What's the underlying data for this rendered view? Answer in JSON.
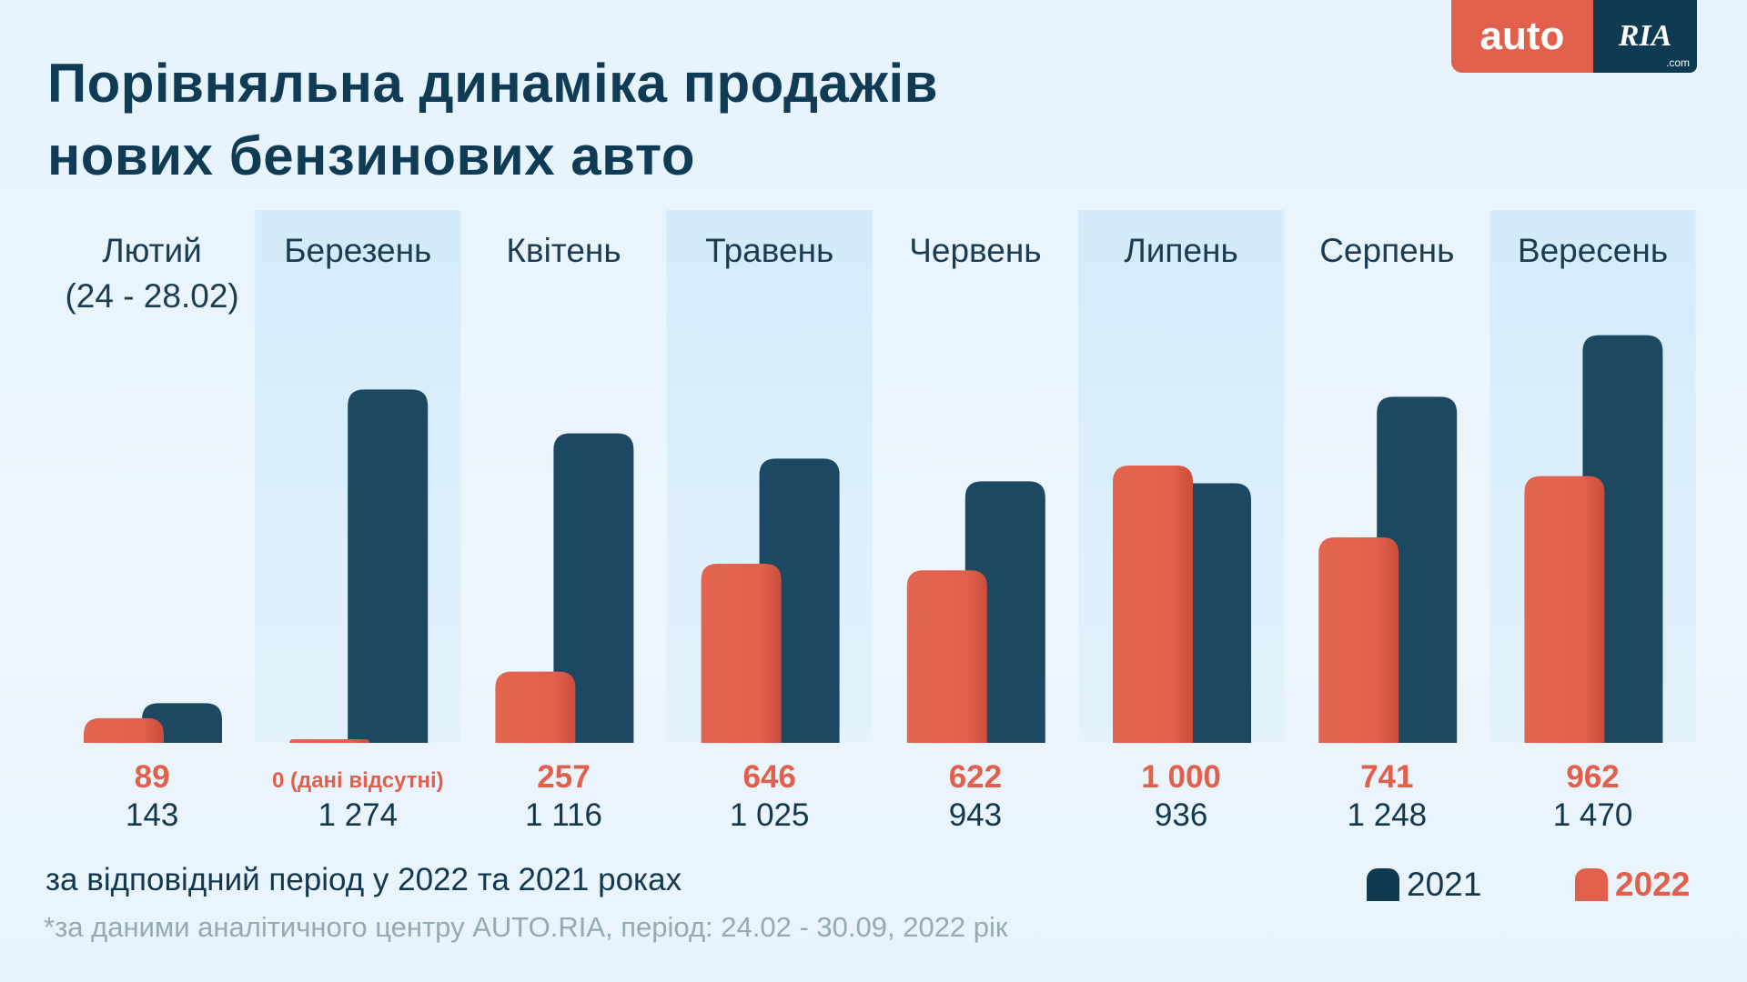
{
  "title_lines": [
    "Порівняльна динаміка продажів",
    "нових бензинових авто"
  ],
  "logo": {
    "left": "auto",
    "right": "RIA",
    "domain": ".com"
  },
  "subtitle": "за відповідний період у 2022 та 2021 роках",
  "footnote": "*за даними аналітичного центру AUTO.RIA, період: 24.02 - 30.09, 2022 рік",
  "chart_data": {
    "type": "bar",
    "categories": [
      "Лютий (24 - 28.02)",
      "Березень",
      "Квітень",
      "Травень",
      "Червень",
      "Липень",
      "Серпень",
      "Вересень"
    ],
    "category_lines": [
      [
        "Лютий",
        "(24 - 28.02)"
      ],
      [
        "Березень"
      ],
      [
        "Квітень"
      ],
      [
        "Травень"
      ],
      [
        "Червень"
      ],
      [
        "Липень"
      ],
      [
        "Серпень"
      ],
      [
        "Вересень"
      ]
    ],
    "series": [
      {
        "name": "2022",
        "color": "#e1604c",
        "values": [
          89,
          0,
          257,
          646,
          622,
          1000,
          741,
          962
        ],
        "labels": [
          "89",
          "0 (дані відсутні)",
          "257",
          "646",
          "622",
          "1 000",
          "741",
          "962"
        ]
      },
      {
        "name": "2021",
        "color": "#1d4862",
        "values": [
          143,
          1274,
          1116,
          1025,
          943,
          936,
          1248,
          1470
        ],
        "labels": [
          "143",
          "1 274",
          "1 116",
          "1 025",
          "943",
          "936",
          "1 248",
          "1 470"
        ]
      }
    ],
    "ylim": [
      0,
      1500
    ],
    "grid": false,
    "legend": "bottom-right"
  }
}
